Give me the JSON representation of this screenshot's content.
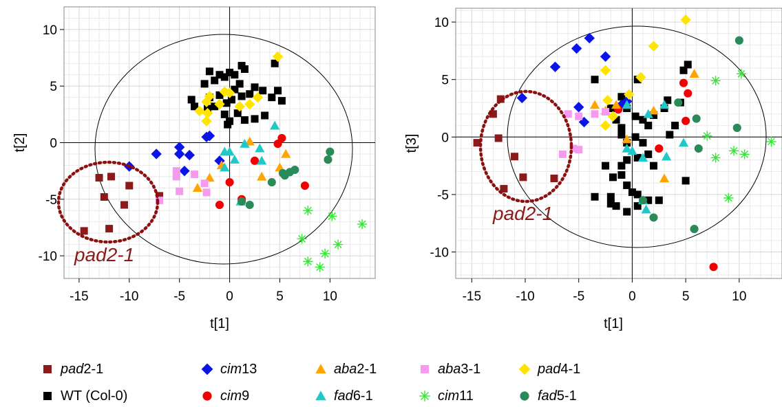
{
  "chart_data": [
    {
      "type": "scatter",
      "xlabel": "t[1]",
      "ylabel": "t[2]",
      "xlim": [
        -16.5,
        14.5
      ],
      "ylim": [
        -12.0,
        12.0
      ],
      "xticks": [
        -15,
        -10,
        -5,
        0,
        5,
        10
      ],
      "yticks": [
        -10,
        -5,
        0,
        5,
        10
      ],
      "annotation": "pad2-1",
      "series": [
        {
          "name": "pad2-1",
          "points": [
            [
              -14.5,
              -7.8
            ],
            [
              -12.0,
              -7.6
            ],
            [
              -12.5,
              -4.8
            ],
            [
              -13.0,
              -3.1
            ],
            [
              -11.8,
              -3.0
            ],
            [
              -10.5,
              -5.5
            ],
            [
              -10.0,
              -3.8
            ],
            [
              -7.0,
              -4.7
            ]
          ]
        },
        {
          "name": "WT (Col-0)",
          "points": [
            [
              -3.8,
              3.8
            ],
            [
              -3.5,
              3.2
            ],
            [
              -2.5,
              5.2
            ],
            [
              -2.0,
              6.3
            ],
            [
              -1.5,
              5.5
            ],
            [
              -1.0,
              6.0
            ],
            [
              -0.5,
              5.8
            ],
            [
              0.0,
              6.2
            ],
            [
              0.5,
              6.0
            ],
            [
              1.2,
              6.8
            ],
            [
              1.5,
              6.5
            ],
            [
              1.0,
              5.2
            ],
            [
              0.5,
              4.7
            ],
            [
              -1.0,
              4.2
            ],
            [
              -0.3,
              3.5
            ],
            [
              0.2,
              3.8
            ],
            [
              1.2,
              4.1
            ],
            [
              2.0,
              4.3
            ],
            [
              2.5,
              4.9
            ],
            [
              3.3,
              4.6
            ],
            [
              4.2,
              4.0
            ],
            [
              4.8,
              4.6
            ],
            [
              4.5,
              7.0
            ],
            [
              5.2,
              3.7
            ],
            [
              -0.5,
              2.5
            ],
            [
              -0.2,
              1.6
            ],
            [
              0.0,
              1.9
            ],
            [
              0.8,
              2.6
            ],
            [
              1.5,
              2.0
            ],
            [
              2.5,
              2.1
            ],
            [
              3.5,
              2.4
            ],
            [
              -1.5,
              3.2
            ],
            [
              -2.2,
              3.0
            ],
            [
              -2.0,
              4.0
            ]
          ]
        },
        {
          "name": "cim13",
          "points": [
            [
              -10.0,
              -2.1
            ],
            [
              -7.3,
              -1.0
            ],
            [
              -5.0,
              -0.4
            ],
            [
              -5.0,
              -1.0
            ],
            [
              -4.0,
              -1.1
            ],
            [
              -4.5,
              -2.5
            ],
            [
              -1.0,
              -1.6
            ],
            [
              -2.3,
              0.5
            ],
            [
              -2.0,
              0.6
            ]
          ]
        },
        {
          "name": "cim9",
          "points": [
            [
              -1.0,
              -5.5
            ],
            [
              0.0,
              -3.5
            ],
            [
              1.2,
              -5.0
            ],
            [
              2.5,
              -1.6
            ],
            [
              4.8,
              -0.1
            ],
            [
              5.2,
              0.4
            ],
            [
              7.5,
              -3.8
            ]
          ]
        },
        {
          "name": "aba2-1",
          "points": [
            [
              -2.0,
              -3.1
            ],
            [
              -3.2,
              -4.0
            ],
            [
              -0.8,
              -2.0
            ],
            [
              2.0,
              0.1
            ],
            [
              3.2,
              -3.0
            ],
            [
              5.0,
              -2.2
            ],
            [
              5.6,
              -1.0
            ]
          ]
        },
        {
          "name": "aba3-1",
          "points": [
            [
              -5.3,
              -2.5
            ],
            [
              -5.3,
              -3.0
            ],
            [
              -3.5,
              -2.8
            ],
            [
              -2.5,
              -3.6
            ],
            [
              -2.3,
              -4.4
            ],
            [
              -5.0,
              -4.3
            ],
            [
              -7.0,
              -5.1
            ]
          ]
        },
        {
          "name": "pad4-1",
          "points": [
            [
              -3.0,
              2.8
            ],
            [
              -2.3,
              3.6
            ],
            [
              -2.2,
              2.6
            ],
            [
              -2.0,
              4.1
            ],
            [
              -1.0,
              3.4
            ],
            [
              -0.5,
              4.5
            ],
            [
              0.0,
              4.4
            ],
            [
              1.0,
              3.2
            ],
            [
              2.0,
              3.4
            ],
            [
              2.8,
              4.0
            ],
            [
              4.8,
              7.6
            ],
            [
              -2.3,
              1.9
            ]
          ]
        },
        {
          "name": "fad6-1",
          "points": [
            [
              -0.5,
              -0.8
            ],
            [
              0.0,
              -0.8
            ],
            [
              0.5,
              -1.5
            ],
            [
              1.5,
              -0.1
            ],
            [
              3.0,
              -0.5
            ],
            [
              3.2,
              -1.6
            ],
            [
              4.5,
              1.5
            ],
            [
              -0.5,
              -2.2
            ],
            [
              1.1,
              -5.2
            ]
          ]
        },
        {
          "name": "cim11",
          "points": [
            [
              7.2,
              -8.5
            ],
            [
              7.8,
              -6.0
            ],
            [
              7.8,
              -10.5
            ],
            [
              9.0,
              -11.0
            ],
            [
              9.5,
              -9.8
            ],
            [
              10.2,
              -6.5
            ],
            [
              10.8,
              -9.0
            ],
            [
              13.2,
              -7.2
            ]
          ]
        },
        {
          "name": "fad5-1",
          "points": [
            [
              10.0,
              -0.8
            ],
            [
              9.8,
              -1.5
            ],
            [
              6.5,
              -2.4
            ],
            [
              6.0,
              -2.6
            ],
            [
              5.3,
              -2.7
            ],
            [
              4.2,
              -3.5
            ],
            [
              5.5,
              -2.9
            ],
            [
              2.0,
              -5.5
            ],
            [
              1.2,
              -5.2
            ]
          ]
        }
      ]
    },
    {
      "type": "scatter",
      "xlabel": "t[1]",
      "ylabel": "t[3]",
      "xlim": [
        -16.5,
        14.0
      ],
      "ylim": [
        -12.3,
        11.2
      ],
      "xticks": [
        -15,
        -10,
        -5,
        0,
        5,
        10
      ],
      "yticks": [
        -10,
        -5,
        0,
        5,
        10
      ],
      "annotation": "pad2-1",
      "series": [
        {
          "name": "pad2-1",
          "points": [
            [
              -14.5,
              -0.5
            ],
            [
              -13.0,
              2.0
            ],
            [
              -12.3,
              3.3
            ],
            [
              -12.5,
              -0.1
            ],
            [
              -11.0,
              -1.7
            ],
            [
              -10.2,
              -3.5
            ],
            [
              -12.0,
              -4.5
            ],
            [
              -7.3,
              -3.6
            ]
          ]
        },
        {
          "name": "WT (Col-0)",
          "points": [
            [
              -3.5,
              5.0
            ],
            [
              -1.0,
              3.5
            ],
            [
              0.5,
              5.0
            ],
            [
              -2.0,
              2.5
            ],
            [
              -1.5,
              1.5
            ],
            [
              -0.5,
              2.5
            ],
            [
              0.3,
              1.8
            ],
            [
              1.0,
              1.5
            ],
            [
              2.0,
              1.9
            ],
            [
              3.0,
              2.5
            ],
            [
              3.3,
              3.2
            ],
            [
              4.5,
              3.0
            ],
            [
              4.8,
              5.8
            ],
            [
              5.2,
              6.3
            ],
            [
              4.0,
              1.0
            ],
            [
              3.5,
              0.2
            ],
            [
              -1.0,
              0.2
            ],
            [
              -0.5,
              -0.5
            ],
            [
              0.3,
              0.0
            ],
            [
              1.0,
              -0.5
            ],
            [
              1.5,
              -1.5
            ],
            [
              2.0,
              -2.5
            ],
            [
              0.5,
              -1.8
            ],
            [
              -0.5,
              -2.0
            ],
            [
              -1.0,
              -2.5
            ],
            [
              -2.5,
              -2.5
            ],
            [
              -1.8,
              -3.5
            ],
            [
              -1.0,
              -3.3
            ],
            [
              -0.5,
              -4.2
            ],
            [
              0.0,
              -4.8
            ],
            [
              0.5,
              -5.0
            ],
            [
              -2.0,
              -5.2
            ],
            [
              -3.5,
              -5.2
            ],
            [
              -2.0,
              -5.8
            ],
            [
              -1.5,
              -6.0
            ],
            [
              -0.5,
              -6.5
            ],
            [
              0.5,
              -6.0
            ],
            [
              1.5,
              -5.5
            ],
            [
              2.5,
              -5.5
            ],
            [
              5.0,
              -3.8
            ],
            [
              -1.0,
              0.8
            ],
            [
              1.5,
              1.0
            ]
          ]
        },
        {
          "name": "cim13",
          "points": [
            [
              -10.3,
              3.4
            ],
            [
              -7.2,
              6.1
            ],
            [
              -5.2,
              7.7
            ],
            [
              -4.0,
              8.6
            ],
            [
              -2.5,
              7.0
            ],
            [
              -5.0,
              2.6
            ],
            [
              -4.5,
              1.3
            ],
            [
              -1.0,
              2.8
            ],
            [
              -0.5,
              3.1
            ]
          ]
        },
        {
          "name": "cim9",
          "points": [
            [
              -1.3,
              2.4
            ],
            [
              2.5,
              -1.0
            ],
            [
              4.8,
              4.7
            ],
            [
              5.2,
              3.8
            ],
            [
              5.0,
              1.4
            ],
            [
              7.6,
              -11.3
            ]
          ]
        },
        {
          "name": "aba2-1",
          "points": [
            [
              -3.5,
              2.8
            ],
            [
              -2.5,
              2.3
            ],
            [
              -1.5,
              2.8
            ],
            [
              2.0,
              2.3
            ],
            [
              5.8,
              5.5
            ],
            [
              3.0,
              -3.6
            ],
            [
              -0.5,
              -0.2
            ]
          ]
        },
        {
          "name": "aba3-1",
          "points": [
            [
              -6.0,
              2.0
            ],
            [
              -5.0,
              1.8
            ],
            [
              -3.5,
              2.0
            ],
            [
              -2.5,
              2.2
            ],
            [
              -5.5,
              -1.0
            ],
            [
              -5.0,
              -1.1
            ],
            [
              -6.5,
              -1.5
            ]
          ]
        },
        {
          "name": "pad4-1",
          "points": [
            [
              -2.5,
              5.8
            ],
            [
              -2.3,
              3.2
            ],
            [
              -2.5,
              1.0
            ],
            [
              -0.3,
              3.7
            ],
            [
              0.8,
              5.2
            ],
            [
              2.0,
              7.9
            ],
            [
              5.0,
              10.2
            ],
            [
              -1.8,
              1.8
            ]
          ]
        },
        {
          "name": "fad6-1",
          "points": [
            [
              -0.5,
              2.8
            ],
            [
              1.5,
              2.0
            ],
            [
              3.0,
              2.8
            ],
            [
              4.8,
              -0.5
            ],
            [
              -0.5,
              -1.0
            ],
            [
              0.0,
              -1.2
            ],
            [
              1.0,
              -1.8
            ],
            [
              3.2,
              -1.7
            ],
            [
              1.0,
              -5.5
            ],
            [
              1.3,
              -6.3
            ]
          ]
        },
        {
          "name": "cim11",
          "points": [
            [
              7.8,
              4.9
            ],
            [
              10.2,
              5.5
            ],
            [
              7.0,
              0.1
            ],
            [
              7.8,
              -1.8
            ],
            [
              9.5,
              -1.2
            ],
            [
              10.5,
              -1.5
            ],
            [
              13.0,
              -0.4
            ],
            [
              9.0,
              -5.3
            ]
          ]
        },
        {
          "name": "fad5-1",
          "points": [
            [
              10.0,
              8.4
            ],
            [
              9.8,
              0.8
            ],
            [
              6.0,
              1.6
            ],
            [
              6.2,
              -1.0
            ],
            [
              4.3,
              3.0
            ],
            [
              5.8,
              -8.0
            ],
            [
              2.0,
              -7.0
            ],
            [
              1.0,
              -5.5
            ]
          ]
        }
      ]
    }
  ],
  "legend": [
    {
      "key": "pad2-1",
      "ital": "pad",
      "rest": "2-1",
      "color": "#8b1a1a",
      "shape": "square"
    },
    {
      "key": "WT (Col-0)",
      "ital": "",
      "rest": "WT (Col-0)",
      "color": "#000000",
      "shape": "square"
    },
    {
      "key": "cim13",
      "ital": "cim",
      "rest": "13",
      "color": "#0a14e6",
      "shape": "diamond"
    },
    {
      "key": "cim9",
      "ital": "cim",
      "rest": "9",
      "color": "#f00000",
      "shape": "circle"
    },
    {
      "key": "aba2-1",
      "ital": "aba",
      "rest": "2-1",
      "color": "#ffa500",
      "shape": "triangle"
    },
    {
      "key": "fad6-1",
      "ital": "fad",
      "rest": "6-1",
      "color": "#20c8c8",
      "shape": "triangle"
    },
    {
      "key": "aba3-1",
      "ital": "aba",
      "rest": "3-1",
      "color": "#f69af0",
      "shape": "square"
    },
    {
      "key": "cim11",
      "ital": "cim",
      "rest": "11",
      "color": "#30e830",
      "shape": "star"
    },
    {
      "key": "pad4-1",
      "ital": "pad",
      "rest": "4-1",
      "color": "#ffe400",
      "shape": "diamond"
    },
    {
      "key": "fad5-1",
      "ital": "fad",
      "rest": "5-1",
      "color": "#2a8a58",
      "shape": "circle"
    }
  ]
}
